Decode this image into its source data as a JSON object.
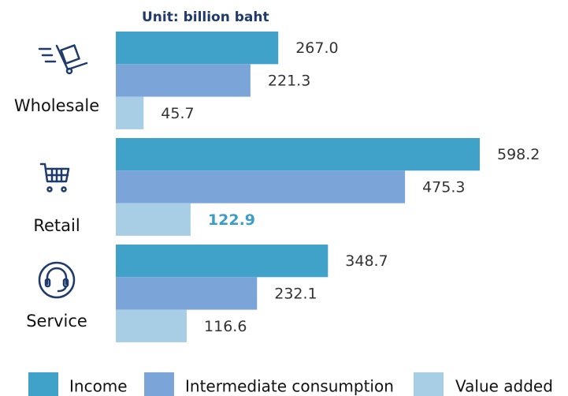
{
  "chart_data": {
    "type": "hbar",
    "title": "Unit: billion baht",
    "categories": [
      "Wholesale",
      "Retail",
      "Service"
    ],
    "series": [
      {
        "name": "Income",
        "color": "#40a1c9",
        "values": [
          267.0,
          598.2,
          348.7
        ],
        "value_labels": [
          "267.0",
          "598.2",
          "348.7"
        ]
      },
      {
        "name": "Intermediate consumption",
        "color": "#7ba4d9",
        "values": [
          221.3,
          475.3,
          232.1
        ],
        "value_labels": [
          "221.3",
          "475.3",
          "232.1"
        ]
      },
      {
        "name": "Value added",
        "color": "#a7cee5",
        "values": [
          45.7,
          122.9,
          116.6
        ],
        "value_labels": [
          "45.7",
          "122.9",
          "116.6"
        ]
      }
    ],
    "highlight": {
      "series": 2,
      "index": 1,
      "color": "#3d9dc8"
    },
    "legend": "bottom"
  }
}
